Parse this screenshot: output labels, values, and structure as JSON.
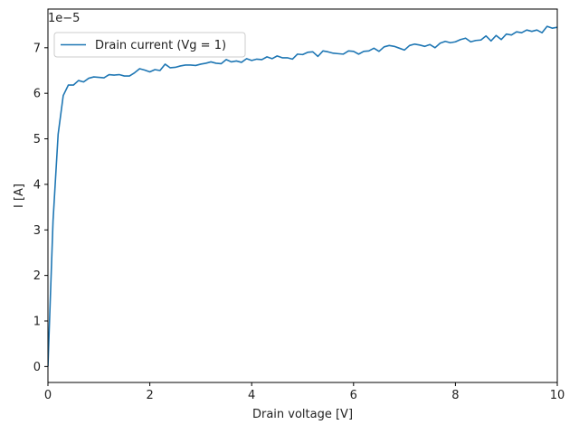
{
  "chart_data": {
    "type": "line",
    "title": "",
    "xlabel": "Drain voltage [V]",
    "ylabel": "I [A]",
    "xlim": [
      0,
      10
    ],
    "ylim": [
      -0.35,
      7.85
    ],
    "y_scale_label": "1e−5",
    "x_ticks": [
      "0",
      "2",
      "4",
      "6",
      "8",
      "10"
    ],
    "y_ticks": [
      "0",
      "1",
      "2",
      "3",
      "4",
      "5",
      "6",
      "7"
    ],
    "grid": false,
    "legend_position": "top-left",
    "series": [
      {
        "name": "Drain current (Vg = 1)",
        "color": "#1f77b4",
        "x": [
          0,
          0.1,
          0.2,
          0.3,
          0.4,
          0.5,
          0.6,
          0.7,
          0.8,
          0.9,
          1.0,
          1.1,
          1.2,
          1.3,
          1.4,
          1.5,
          1.6,
          1.7,
          1.8,
          1.9,
          2.0,
          2.1,
          2.2,
          2.3,
          2.4,
          2.5,
          2.6,
          2.7,
          2.8,
          2.9,
          3.0,
          3.1,
          3.2,
          3.3,
          3.4,
          3.5,
          3.6,
          3.7,
          3.8,
          3.9,
          4.0,
          4.1,
          4.2,
          4.3,
          4.4,
          4.5,
          4.6,
          4.7,
          4.8,
          4.9,
          5.0,
          5.1,
          5.2,
          5.3,
          5.4,
          5.5,
          5.6,
          5.7,
          5.8,
          5.9,
          6.0,
          6.1,
          6.2,
          6.3,
          6.4,
          6.5,
          6.6,
          6.7,
          6.8,
          6.9,
          7.0,
          7.1,
          7.2,
          7.3,
          7.4,
          7.5,
          7.6,
          7.7,
          7.8,
          7.9,
          8.0,
          8.1,
          8.2,
          8.3,
          8.4,
          8.5,
          8.6,
          8.7,
          8.8,
          8.9,
          9.0,
          9.1,
          9.2,
          9.3,
          9.4,
          9.5,
          9.6,
          9.7,
          9.8,
          9.9,
          10.0
        ],
        "values": [
          0,
          3.2,
          5.1,
          5.95,
          6.18,
          6.18,
          6.28,
          6.25,
          6.33,
          6.36,
          6.35,
          6.34,
          6.41,
          6.4,
          6.41,
          6.38,
          6.38,
          6.45,
          6.54,
          6.51,
          6.47,
          6.52,
          6.5,
          6.64,
          6.56,
          6.57,
          6.6,
          6.62,
          6.62,
          6.61,
          6.64,
          6.66,
          6.69,
          6.66,
          6.65,
          6.74,
          6.69,
          6.71,
          6.68,
          6.76,
          6.72,
          6.75,
          6.74,
          6.8,
          6.76,
          6.82,
          6.78,
          6.78,
          6.75,
          6.86,
          6.85,
          6.9,
          6.91,
          6.81,
          6.93,
          6.91,
          6.88,
          6.87,
          6.86,
          6.93,
          6.92,
          6.86,
          6.92,
          6.93,
          6.99,
          6.92,
          7.02,
          7.05,
          7.03,
          6.99,
          6.95,
          7.05,
          7.08,
          7.06,
          7.03,
          7.07,
          7.0,
          7.1,
          7.14,
          7.11,
          7.13,
          7.18,
          7.21,
          7.13,
          7.16,
          7.17,
          7.26,
          7.15,
          7.27,
          7.18,
          7.3,
          7.28,
          7.35,
          7.33,
          7.39,
          7.36,
          7.39,
          7.33,
          7.47,
          7.43,
          7.45
        ]
      }
    ]
  }
}
